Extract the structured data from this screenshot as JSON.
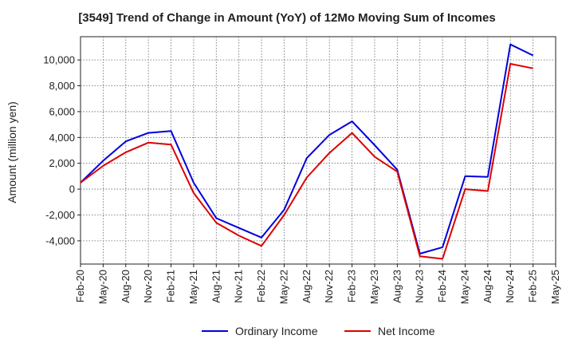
{
  "chart_data": {
    "type": "line",
    "title": "[3549]  Trend of Change in Amount (YoY) of 12Mo Moving Sum of Incomes",
    "ylabel": "Amount (million yen)",
    "xlabel": "",
    "x": [
      "Feb-20",
      "May-20",
      "Aug-20",
      "Nov-20",
      "Feb-21",
      "May-21",
      "Aug-21",
      "Nov-21",
      "Feb-22",
      "May-22",
      "Aug-22",
      "Nov-22",
      "Feb-23",
      "May-23",
      "Aug-23",
      "Nov-23",
      "Feb-24",
      "May-24",
      "Aug-24",
      "Nov-24",
      "Feb-25",
      "May-25"
    ],
    "ylim": [
      -5800,
      11800
    ],
    "yticks": [
      -4000,
      -2000,
      0,
      2000,
      4000,
      6000,
      8000,
      10000
    ],
    "ytick_labels": [
      "-4,000",
      "-2,000",
      "0",
      "2,000",
      "4,000",
      "6,000",
      "8,000",
      "10,000"
    ],
    "grid": true,
    "legend_position": "bottom-center",
    "series": [
      {
        "name": "Ordinary Income",
        "color": "#0000dd",
        "values": [
          500,
          2200,
          3700,
          4350,
          4500,
          500,
          -2250,
          -3000,
          -3750,
          -1600,
          2400,
          4200,
          5250,
          3400,
          1500,
          -5000,
          -4500,
          1000,
          950,
          11200,
          10350,
          null
        ]
      },
      {
        "name": "Net Income",
        "color": "#dd0000",
        "values": [
          500,
          1800,
          2850,
          3600,
          3450,
          -300,
          -2600,
          -3600,
          -4400,
          -2000,
          900,
          2800,
          4350,
          2500,
          1350,
          -5200,
          -5400,
          0,
          -150,
          9700,
          9350,
          null
        ]
      }
    ]
  }
}
